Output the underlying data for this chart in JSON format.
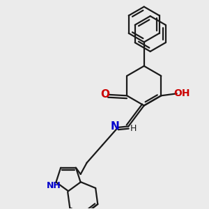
{
  "bg_color": "#ebebeb",
  "bond_color": "#1a1a1a",
  "nitrogen_color": "#0000cc",
  "oxygen_color": "#cc0000",
  "line_width": 1.6,
  "font_size": 9,
  "xlim": [
    0,
    10
  ],
  "ylim": [
    0,
    10
  ]
}
